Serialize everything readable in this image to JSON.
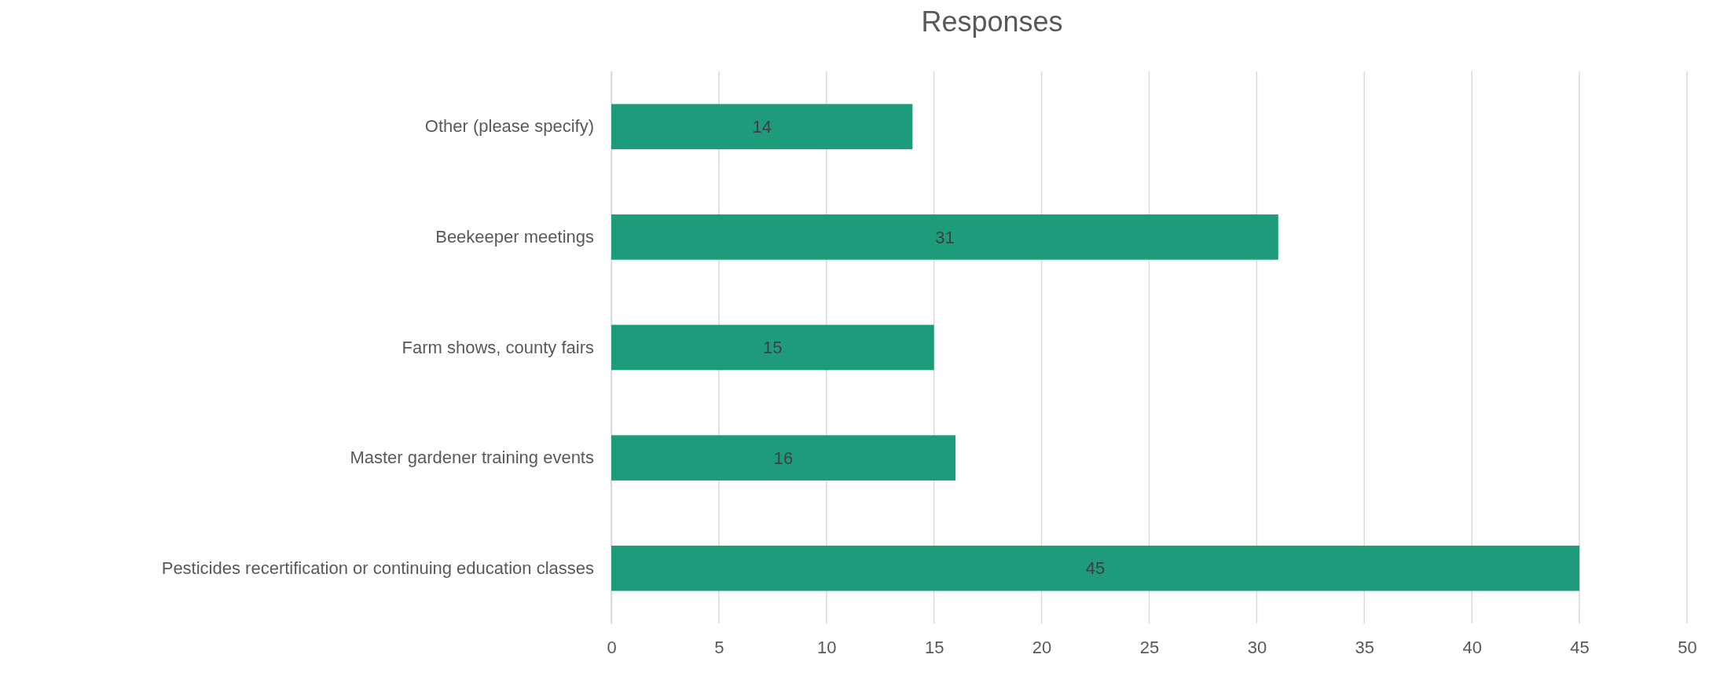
{
  "chart_data": {
    "type": "bar",
    "orientation": "horizontal",
    "title": "Responses",
    "categories": [
      "Other (please specify)",
      "Beekeeper meetings",
      "Farm shows, county fairs",
      "Master gardener training events",
      "Pesticides recertification or continuing education classes"
    ],
    "values": [
      14,
      31,
      15,
      16,
      45
    ],
    "color": "#1e9b7a",
    "xlim": [
      0,
      50
    ],
    "xticks": [
      0,
      5,
      10,
      15,
      20,
      25,
      30,
      35,
      40,
      45,
      50
    ],
    "grid": "x",
    "data_labels": true
  }
}
